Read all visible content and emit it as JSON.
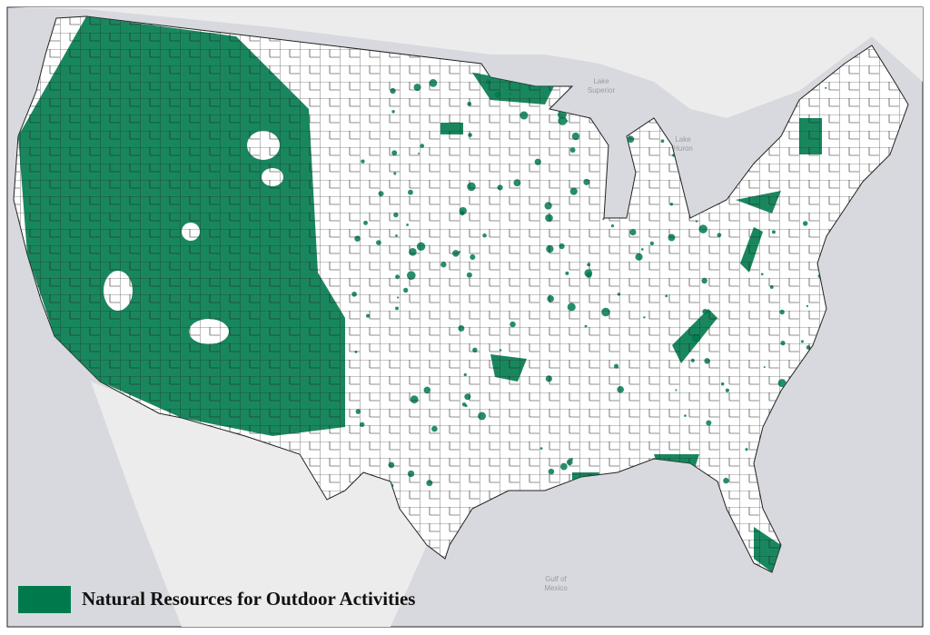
{
  "legend": {
    "label": "Natural Resources for Outdoor Activities",
    "color": "#007a4d"
  },
  "map_labels": [
    {
      "lines": [
        "Lake",
        "Superior"
      ]
    },
    {
      "lines": [
        "Lake",
        "Huron"
      ]
    },
    {
      "lines": [
        "Gulf of",
        "Mexico"
      ]
    }
  ]
}
